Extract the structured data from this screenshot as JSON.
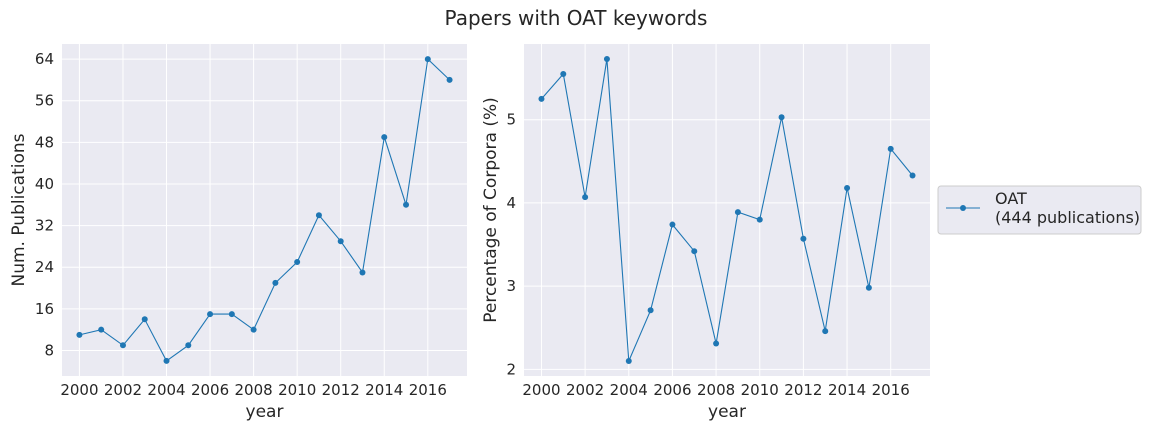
{
  "figure": {
    "title": "Papers with OAT keywords"
  },
  "chart_data": [
    {
      "type": "line",
      "x": [
        2000,
        2001,
        2002,
        2003,
        2004,
        2005,
        2006,
        2007,
        2008,
        2009,
        2010,
        2011,
        2012,
        2013,
        2014,
        2015,
        2016,
        2017
      ],
      "series": [
        {
          "values": [
            11,
            12,
            9,
            14,
            6,
            9,
            15,
            15,
            12,
            21,
            25,
            34,
            29,
            23,
            49,
            36,
            64,
            60
          ],
          "color": "#1f77b4"
        }
      ],
      "xlabel": "year",
      "ylabel": "Num. Publications",
      "xlim": [
        1999.2,
        2017.8
      ],
      "ylim": [
        3.1,
        66.9
      ],
      "xticks": [
        2000,
        2002,
        2004,
        2006,
        2008,
        2010,
        2012,
        2014,
        2016
      ],
      "yticks": [
        8,
        16,
        24,
        32,
        40,
        48,
        56,
        64
      ],
      "grid": true,
      "style": "seaborn-darkgrid",
      "marker": "circle"
    },
    {
      "type": "line",
      "x": [
        2000,
        2001,
        2002,
        2003,
        2004,
        2005,
        2006,
        2007,
        2008,
        2009,
        2010,
        2011,
        2012,
        2013,
        2014,
        2015,
        2016,
        2017
      ],
      "series": [
        {
          "name": "OAT\n(444 publications)",
          "values": [
            5.25,
            5.55,
            4.07,
            5.73,
            2.1,
            2.71,
            3.74,
            3.42,
            2.31,
            3.89,
            3.8,
            5.03,
            3.57,
            2.46,
            4.18,
            2.98,
            4.65,
            4.33
          ],
          "color": "#1f77b4"
        }
      ],
      "xlabel": "year",
      "ylabel": "Percentage of Corpora (%)",
      "xlim": [
        1999.2,
        2017.8
      ],
      "ylim": [
        1.92,
        5.91
      ],
      "xticks": [
        2000,
        2002,
        2004,
        2006,
        2008,
        2010,
        2012,
        2014,
        2016
      ],
      "yticks": [
        2,
        3,
        4,
        5
      ],
      "grid": true,
      "style": "seaborn-darkgrid",
      "marker": "circle",
      "legend": {
        "placement": "outside-right",
        "lines": [
          "OAT",
          "(444 publications)"
        ]
      }
    }
  ]
}
